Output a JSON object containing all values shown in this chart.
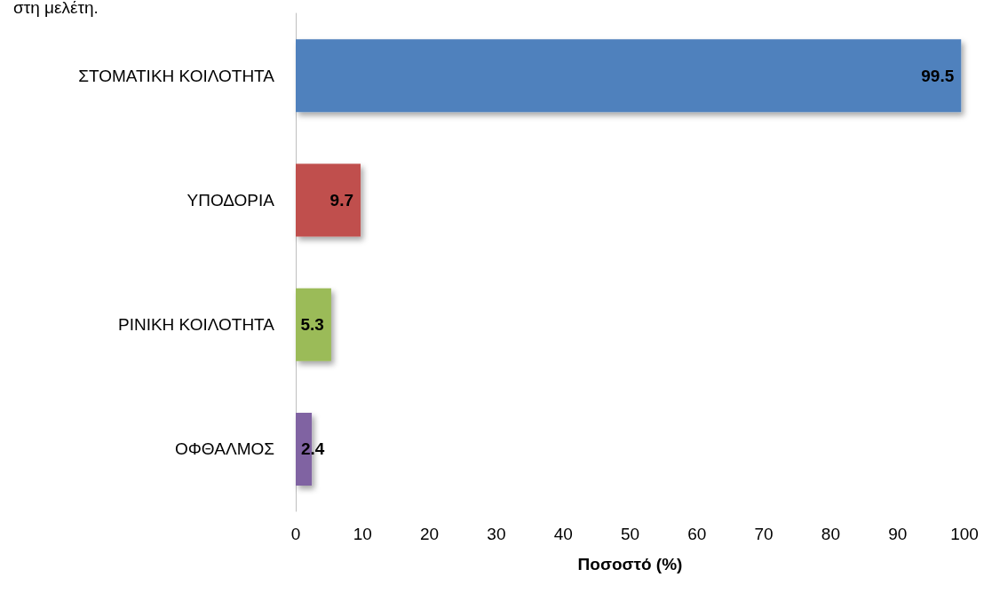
{
  "chart_data": {
    "type": "bar",
    "orientation": "horizontal",
    "title": "στη μελέτη.",
    "categories": [
      "ΣΤΟΜΑΤΙΚΗ ΚΟΙΛΟΤΗΤΑ",
      "ΥΠΟΔΟΡΙΑ",
      "ΡΙΝΙΚΗ ΚΟΙΛΟΤΗΤΑ",
      "ΟΦΘΑΛΜΟΣ"
    ],
    "values": [
      99.5,
      9.7,
      5.3,
      2.4
    ],
    "colors": [
      "#4f81bd",
      "#c0504d",
      "#9bbb59",
      "#8064a2"
    ],
    "xlabel": "Ποσοστό (%)",
    "xlim": [
      0,
      100
    ],
    "xticks": [
      0,
      10,
      20,
      30,
      40,
      50,
      60,
      70,
      80,
      90,
      100
    ],
    "data_labels": true,
    "grid": false
  }
}
